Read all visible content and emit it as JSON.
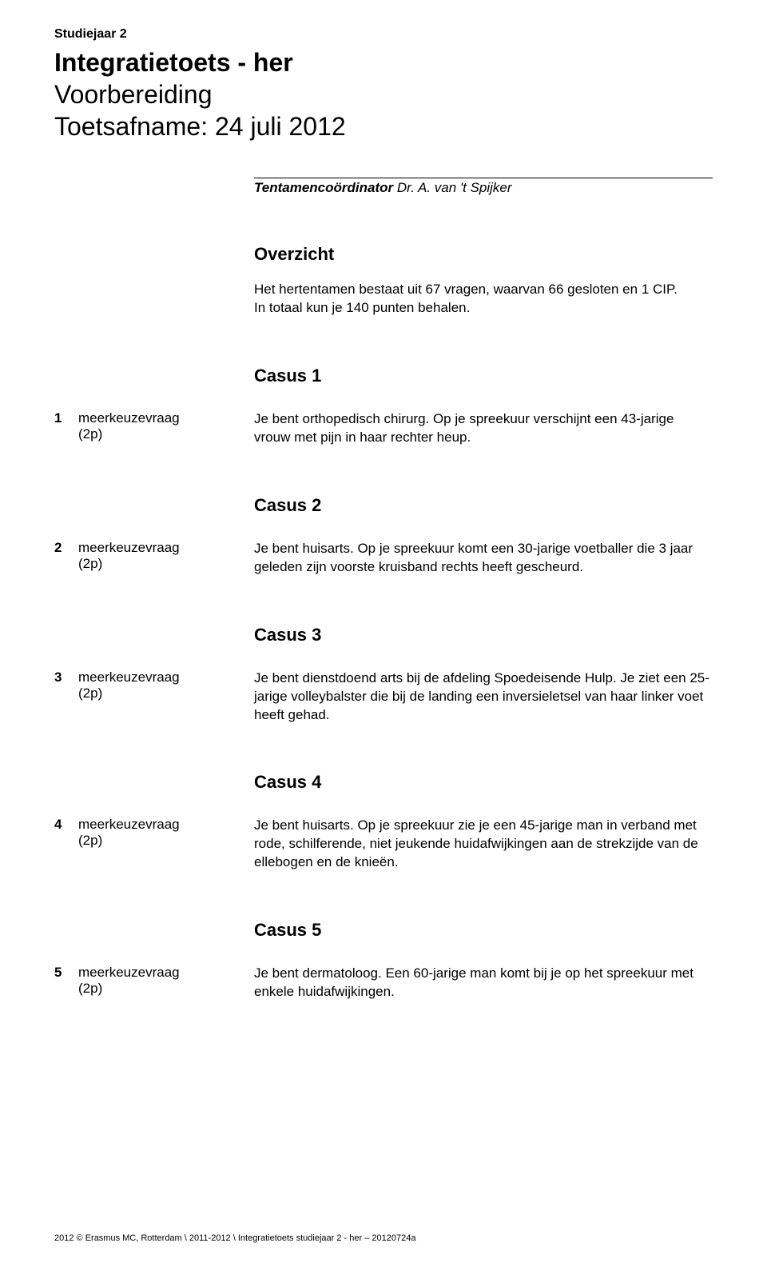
{
  "header": {
    "study_year": "Studiejaar 2",
    "title_bold": "Integratietoets - her",
    "subtitle_1": "Voorbereiding",
    "subtitle_2": "Toetsafname: 24 juli 2012",
    "coordinator_label": "Tentamencoördinator",
    "coordinator_name": " Dr. A. van 't Spijker"
  },
  "overview": {
    "heading": "Overzicht",
    "text_1": "Het hertentamen bestaat uit 67 vragen, waarvan 66 gesloten en 1 CIP.",
    "text_2": "In totaal kun je 140 punten behalen."
  },
  "casus": [
    {
      "heading": "Casus 1",
      "num": "1",
      "type": "meerkeuzevraag",
      "points": "(2p)",
      "text": "Je bent orthopedisch chirurg. Op je spreekuur verschijnt een 43-jarige vrouw met pijn in haar rechter heup."
    },
    {
      "heading": "Casus 2",
      "num": "2",
      "type": "meerkeuzevraag",
      "points": "(2p)",
      "text": "Je bent huisarts. Op je spreekuur komt een 30-jarige voetballer die 3 jaar geleden zijn voorste kruisband rechts heeft gescheurd."
    },
    {
      "heading": "Casus 3",
      "num": "3",
      "type": "meerkeuzevraag",
      "points": "(2p)",
      "text": "Je bent dienstdoend arts bij de afdeling Spoedeisende Hulp. Je ziet een 25-jarige volleybalster die bij de landing een inversieletsel van haar linker voet heeft gehad."
    },
    {
      "heading": "Casus 4",
      "num": "4",
      "type": "meerkeuzevraag",
      "points": "(2p)",
      "text": "Je bent huisarts. Op je spreekuur zie je een 45-jarige man in verband met rode, schilferende, niet jeukende huidafwijkingen aan de strekzijde van de ellebogen en de knieën."
    },
    {
      "heading": "Casus 5",
      "num": "5",
      "type": "meerkeuzevraag",
      "points": "(2p)",
      "text": "Je bent dermatoloog. Een 60-jarige man komt bij je op het spreekuur met enkele huidafwijkingen."
    }
  ],
  "footer": "2012 © Erasmus MC, Rotterdam \\ 2011-2012 \\ Integratietoets studiejaar 2 - her – 20120724a"
}
